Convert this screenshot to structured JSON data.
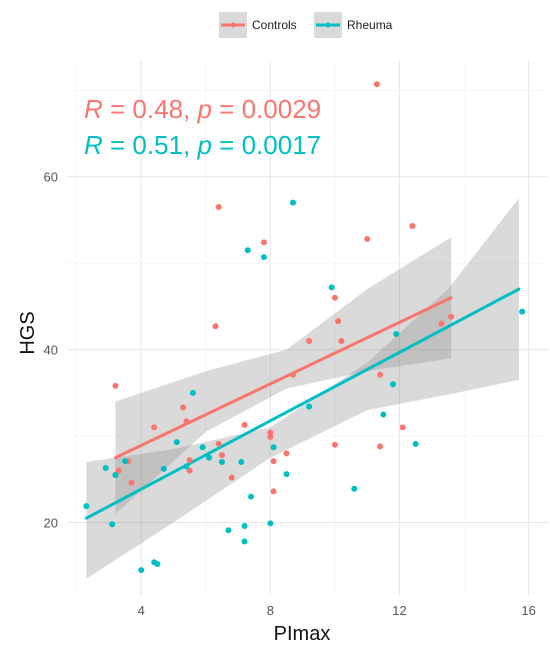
{
  "chart_data": {
    "type": "scatter",
    "xlabel": "PImax",
    "ylabel": "HGS",
    "xlim": [
      1.7,
      16.6
    ],
    "ylim": [
      11.5,
      73.5
    ],
    "x_ticks": [
      4,
      8,
      12,
      16
    ],
    "y_ticks": [
      20,
      40,
      60
    ],
    "grid": "on",
    "legend_position": "top",
    "series": [
      {
        "name": "Controls",
        "color": "#F8766D",
        "stat": {
          "R_label": "R",
          "R_value": "0.48",
          "p_label": "p",
          "p_value": "0.0029"
        },
        "fit": {
          "x": [
            3.2,
            13.6
          ],
          "y": [
            27.5,
            46.0
          ]
        },
        "band": {
          "x": [
            3.2,
            6.0,
            8.5,
            11.0,
            13.6
          ],
          "lower": [
            21.0,
            30.5,
            35.5,
            37.5,
            39.0
          ],
          "upper": [
            34.0,
            37.5,
            40.0,
            47.0,
            53.0
          ]
        },
        "points": [
          {
            "x": 3.2,
            "y": 35.8
          },
          {
            "x": 3.3,
            "y": 26.0
          },
          {
            "x": 3.6,
            "y": 27.1
          },
          {
            "x": 3.7,
            "y": 24.6
          },
          {
            "x": 4.4,
            "y": 31.0
          },
          {
            "x": 5.3,
            "y": 33.3
          },
          {
            "x": 5.4,
            "y": 31.7
          },
          {
            "x": 5.5,
            "y": 27.2
          },
          {
            "x": 5.5,
            "y": 26.0
          },
          {
            "x": 6.3,
            "y": 42.7
          },
          {
            "x": 6.4,
            "y": 56.5
          },
          {
            "x": 6.4,
            "y": 29.1
          },
          {
            "x": 6.5,
            "y": 27.8
          },
          {
            "x": 6.8,
            "y": 25.2
          },
          {
            "x": 7.2,
            "y": 31.3
          },
          {
            "x": 7.8,
            "y": 52.4
          },
          {
            "x": 8.0,
            "y": 29.9
          },
          {
            "x": 8.0,
            "y": 30.4
          },
          {
            "x": 8.1,
            "y": 23.6
          },
          {
            "x": 8.1,
            "y": 27.1
          },
          {
            "x": 8.5,
            "y": 28.0
          },
          {
            "x": 8.7,
            "y": 37.1
          },
          {
            "x": 9.2,
            "y": 41.0
          },
          {
            "x": 10.0,
            "y": 29.0
          },
          {
            "x": 10.0,
            "y": 46.0
          },
          {
            "x": 10.1,
            "y": 43.3
          },
          {
            "x": 10.2,
            "y": 41.0
          },
          {
            "x": 11.0,
            "y": 52.8
          },
          {
            "x": 11.3,
            "y": 70.7
          },
          {
            "x": 11.4,
            "y": 37.1
          },
          {
            "x": 11.4,
            "y": 28.8
          },
          {
            "x": 12.1,
            "y": 31.0
          },
          {
            "x": 12.4,
            "y": 54.3
          },
          {
            "x": 13.3,
            "y": 43.0
          },
          {
            "x": 13.6,
            "y": 43.8
          }
        ]
      },
      {
        "name": "Rheuma",
        "color": "#00BFC4",
        "stat": {
          "R_label": "R",
          "R_value": "0.51",
          "p_label": "p",
          "p_value": "0.0017"
        },
        "fit": {
          "x": [
            2.3,
            15.7
          ],
          "y": [
            20.5,
            47.0
          ]
        },
        "band": {
          "x": [
            2.3,
            5.0,
            8.0,
            11.0,
            13.5,
            15.7
          ],
          "lower": [
            13.5,
            20.0,
            27.5,
            33.0,
            34.8,
            36.5
          ],
          "upper": [
            27.0,
            28.5,
            31.0,
            38.5,
            47.0,
            57.5
          ]
        },
        "points": [
          {
            "x": 2.3,
            "y": 21.9
          },
          {
            "x": 2.9,
            "y": 26.3
          },
          {
            "x": 3.1,
            "y": 19.8
          },
          {
            "x": 3.2,
            "y": 25.5
          },
          {
            "x": 3.5,
            "y": 27.1
          },
          {
            "x": 4.0,
            "y": 14.5
          },
          {
            "x": 4.4,
            "y": 15.4
          },
          {
            "x": 4.5,
            "y": 15.2
          },
          {
            "x": 4.7,
            "y": 26.2
          },
          {
            "x": 5.1,
            "y": 29.3
          },
          {
            "x": 5.4,
            "y": 26.5
          },
          {
            "x": 5.6,
            "y": 35.0
          },
          {
            "x": 5.9,
            "y": 28.7
          },
          {
            "x": 6.1,
            "y": 27.5
          },
          {
            "x": 6.5,
            "y": 27.0
          },
          {
            "x": 6.7,
            "y": 19.1
          },
          {
            "x": 7.1,
            "y": 27.0
          },
          {
            "x": 7.2,
            "y": 17.8
          },
          {
            "x": 7.2,
            "y": 19.6
          },
          {
            "x": 7.3,
            "y": 51.5
          },
          {
            "x": 7.4,
            "y": 23.0
          },
          {
            "x": 7.8,
            "y": 50.7
          },
          {
            "x": 8.0,
            "y": 19.9
          },
          {
            "x": 8.1,
            "y": 28.7
          },
          {
            "x": 8.5,
            "y": 25.6
          },
          {
            "x": 8.7,
            "y": 57.0
          },
          {
            "x": 9.2,
            "y": 33.4
          },
          {
            "x": 9.9,
            "y": 47.2
          },
          {
            "x": 10.6,
            "y": 23.9
          },
          {
            "x": 11.5,
            "y": 32.5
          },
          {
            "x": 11.8,
            "y": 36.0
          },
          {
            "x": 11.9,
            "y": 41.8
          },
          {
            "x": 12.5,
            "y": 29.1
          },
          {
            "x": 15.8,
            "y": 44.4
          }
        ]
      }
    ]
  }
}
